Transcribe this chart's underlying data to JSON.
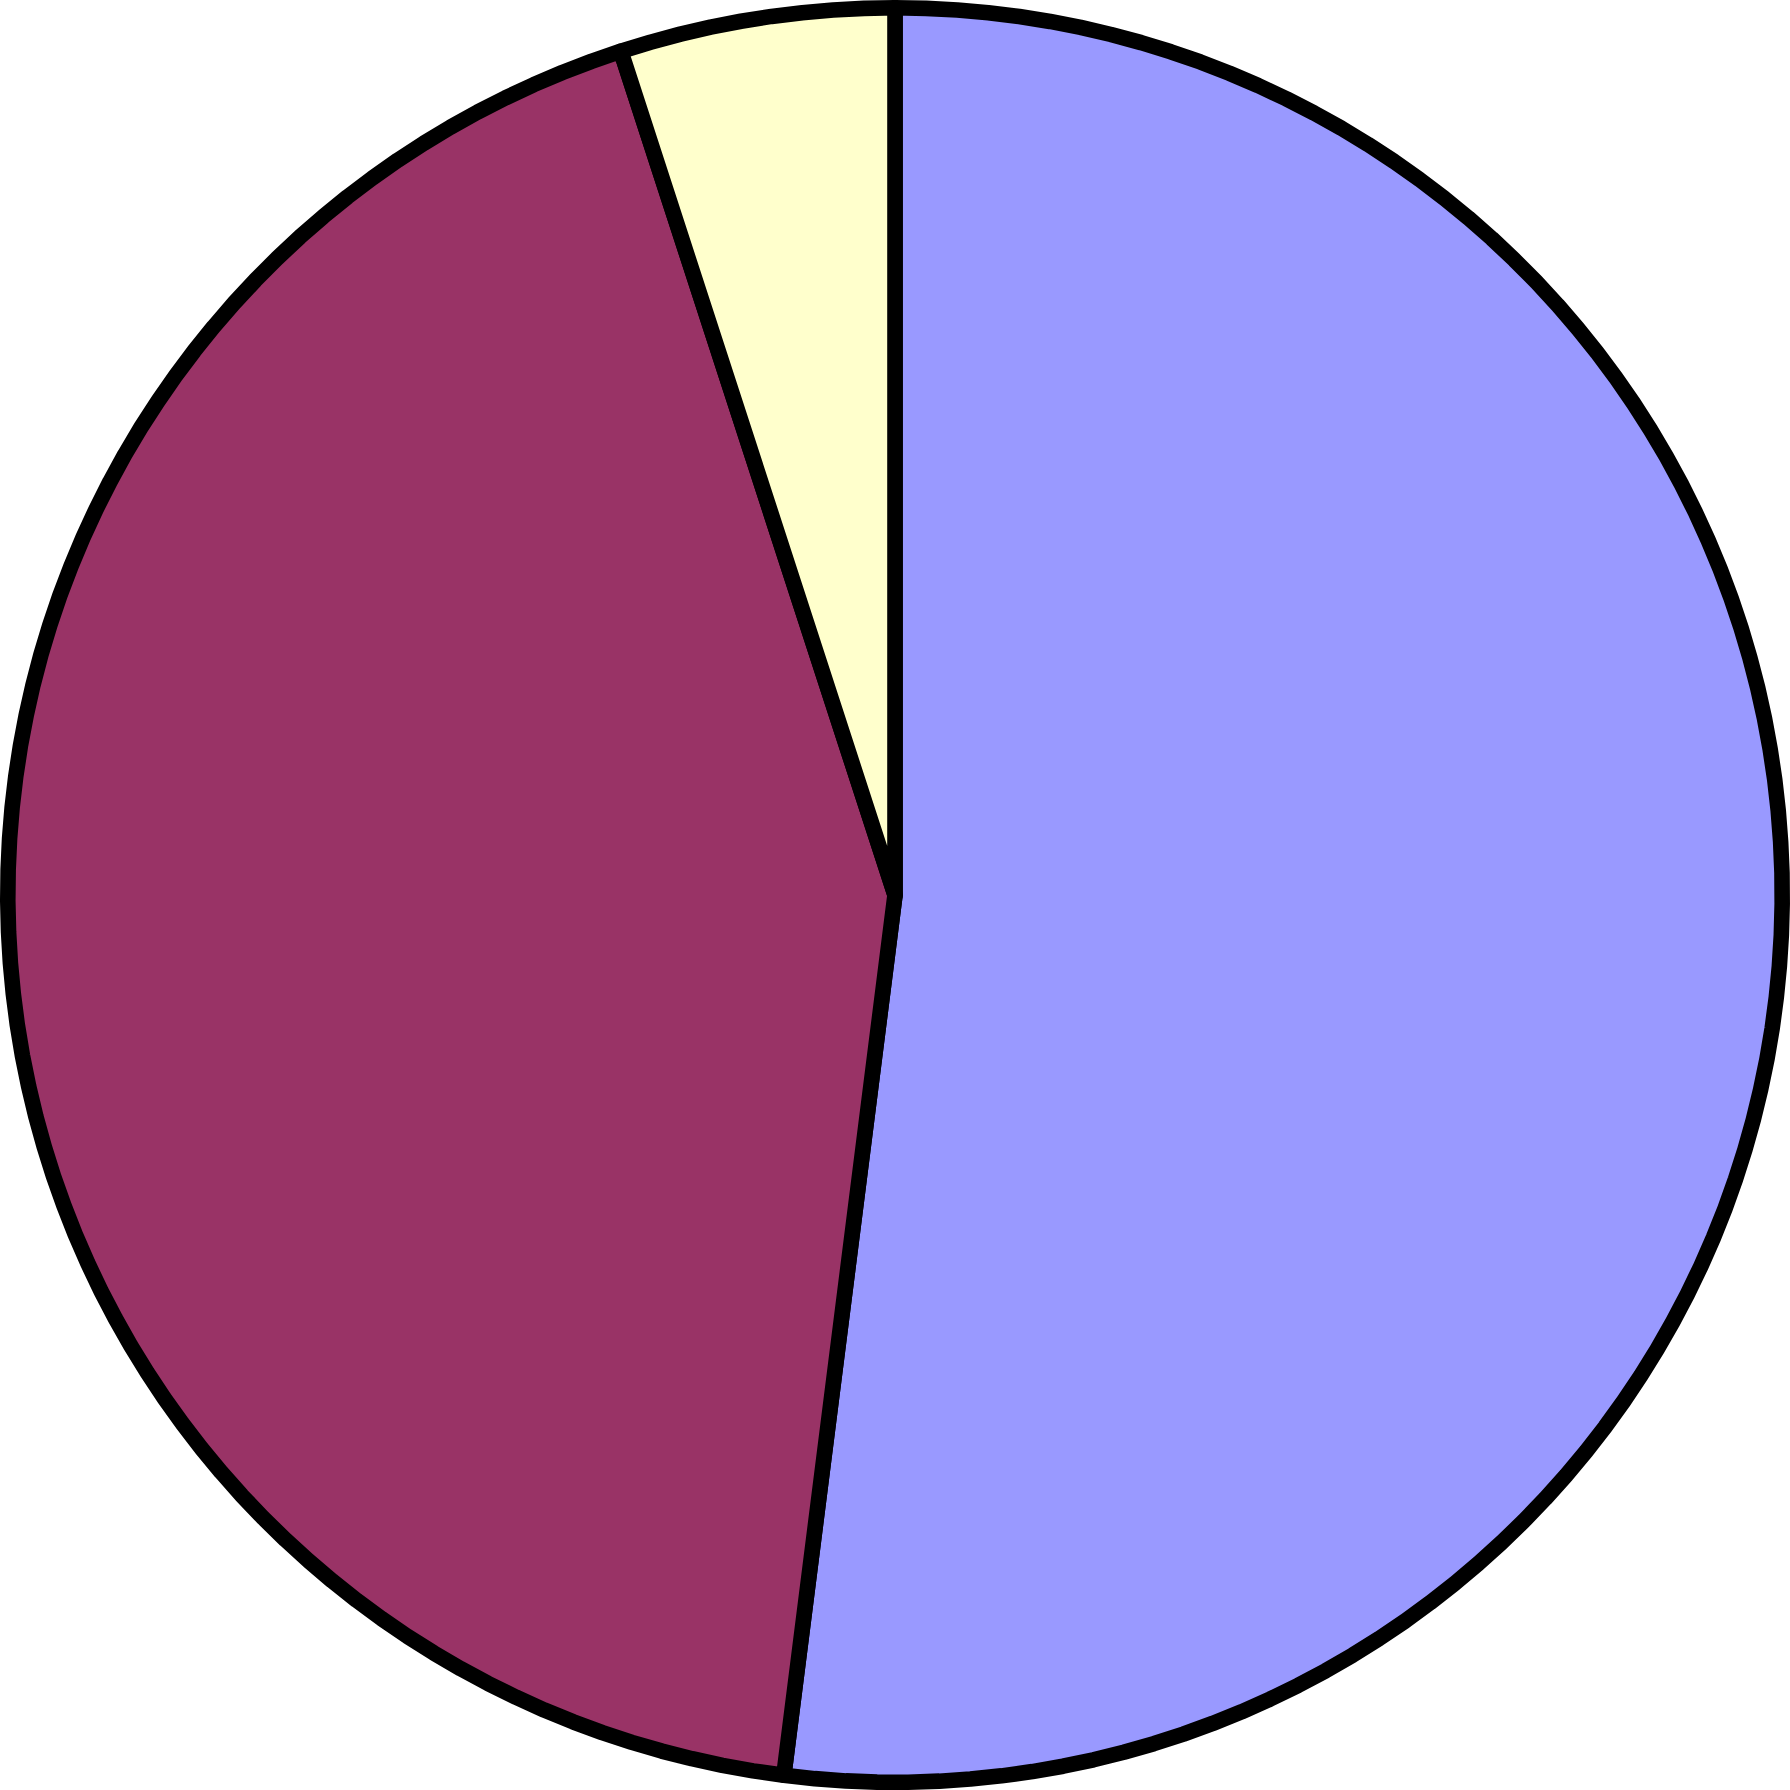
{
  "chart_data": {
    "type": "pie",
    "categories": [
      null,
      null,
      null
    ],
    "values": [
      52,
      43,
      5
    ],
    "colors": [
      "#9999ff",
      "#993366",
      "#ffffcc"
    ]
  }
}
